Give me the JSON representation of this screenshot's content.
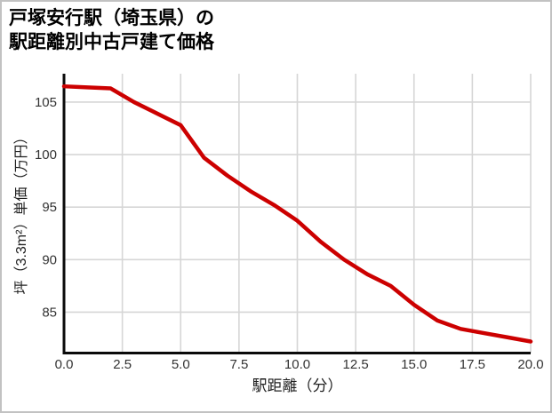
{
  "title": {
    "line1": "戸塚安行駅（埼玉県）の",
    "line2": "駅距離別中古戸建て価格"
  },
  "chart_data": {
    "type": "line",
    "title": "戸塚安行駅（埼玉県）の駅距離別中古戸建て価格",
    "xlabel": "駅距離（分）",
    "ylabel": "坪（3.3m²）単価（万円）",
    "x": [
      0,
      1,
      2,
      3,
      4,
      5,
      6,
      7,
      8,
      9,
      10,
      11,
      12,
      13,
      14,
      15,
      16,
      17,
      18,
      19,
      20
    ],
    "series": [
      {
        "color": "#cc0000",
        "values": [
          106.5,
          106.4,
          106.3,
          105.0,
          103.9,
          102.8,
          99.7,
          98.0,
          96.5,
          95.2,
          93.7,
          91.7,
          90.0,
          88.6,
          87.5,
          85.7,
          84.2,
          83.4,
          83.0,
          82.6,
          82.2
        ]
      }
    ],
    "x_tick_values": [
      0,
      2.5,
      5,
      7.5,
      10,
      12.5,
      15,
      17.5,
      20
    ],
    "x_ticks": [
      "0.0",
      "2.5",
      "5.0",
      "7.5",
      "10.0",
      "12.5",
      "15.0",
      "17.5",
      "20.0"
    ],
    "y_tick_values": [
      85,
      90,
      95,
      100,
      105
    ],
    "y_ticks": [
      "85",
      "90",
      "95",
      "100",
      "105"
    ],
    "xlim": [
      0,
      20
    ],
    "ylim": [
      81.1,
      107.7
    ],
    "grid": true,
    "legend": false,
    "grid_color": "#d6d6d6",
    "axis_color": "#0a0a0a",
    "tick_label_color": "#333333"
  }
}
